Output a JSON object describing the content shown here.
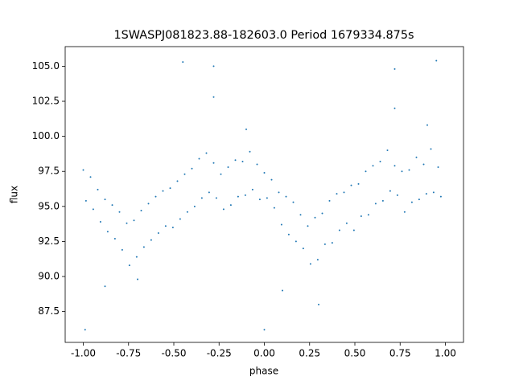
{
  "chart_data": {
    "type": "scatter",
    "title": "1SWASPJ081823.88-182603.0 Period 1679334.875s",
    "xlabel": "phase",
    "ylabel": "flux",
    "color": "#1f77b4",
    "xlim": [
      -1.1,
      1.1
    ],
    "ylim": [
      85.3,
      106.4
    ],
    "xticks": [
      {
        "value": -1,
        "label": "-1.00"
      },
      {
        "value": -0.75,
        "label": "-0.75"
      },
      {
        "value": -0.5,
        "label": "-0.50"
      },
      {
        "value": -0.25,
        "label": "-0.25"
      },
      {
        "value": 0,
        "label": "0.00"
      },
      {
        "value": 0.25,
        "label": "0.25"
      },
      {
        "value": 0.5,
        "label": "0.50"
      },
      {
        "value": 0.75,
        "label": "0.75"
      },
      {
        "value": 1,
        "label": "1.00"
      }
    ],
    "yticks": [
      {
        "value": 87.5,
        "label": "87.5"
      },
      {
        "value": 90,
        "label": "90.0"
      },
      {
        "value": 92.5,
        "label": "92.5"
      },
      {
        "value": 95,
        "label": "95.0"
      },
      {
        "value": 97.5,
        "label": "97.5"
      },
      {
        "value": 100,
        "label": "100.0"
      },
      {
        "value": 102.5,
        "label": "102.5"
      },
      {
        "value": 105,
        "label": "105.0"
      }
    ],
    "x": [
      -1.0,
      -0.985,
      -0.96,
      -0.945,
      -0.92,
      -0.905,
      -0.88,
      -0.865,
      -0.84,
      -0.825,
      -0.8,
      -0.785,
      -0.76,
      -0.745,
      -0.72,
      -0.705,
      -0.68,
      -0.665,
      -0.64,
      -0.625,
      -0.6,
      -0.585,
      -0.56,
      -0.545,
      -0.52,
      -0.505,
      -0.48,
      -0.465,
      -0.44,
      -0.425,
      -0.4,
      -0.385,
      -0.36,
      -0.345,
      -0.32,
      -0.305,
      -0.28,
      -0.265,
      -0.24,
      -0.225,
      -0.2,
      -0.185,
      -0.16,
      -0.145,
      -0.12,
      -0.105,
      -0.08,
      -0.065,
      -0.04,
      -0.025,
      0.0,
      0.015,
      0.04,
      0.055,
      0.08,
      0.095,
      0.12,
      0.135,
      0.16,
      0.175,
      0.2,
      0.215,
      0.24,
      0.255,
      0.28,
      0.295,
      0.32,
      0.335,
      0.36,
      0.375,
      0.4,
      0.415,
      0.44,
      0.455,
      0.48,
      0.495,
      0.52,
      0.535,
      0.56,
      0.575,
      0.6,
      0.615,
      0.64,
      0.655,
      0.68,
      0.695,
      0.72,
      0.735,
      0.76,
      0.775,
      0.8,
      0.815,
      0.84,
      0.855,
      0.88,
      0.895,
      0.92,
      0.935,
      0.96,
      0.975,
      -0.28,
      0.72,
      -0.88,
      0.1,
      -0.45,
      0.95,
      -0.99,
      0.0,
      0.3,
      -0.7,
      -0.1,
      0.9,
      0.72,
      -0.28
    ],
    "y": [
      97.6,
      95.4,
      97.1,
      94.8,
      96.2,
      93.9,
      95.5,
      93.2,
      95.1,
      92.7,
      94.6,
      91.9,
      93.8,
      90.8,
      94.0,
      91.4,
      94.7,
      92.1,
      95.2,
      92.6,
      95.7,
      93.1,
      96.1,
      93.6,
      96.3,
      93.5,
      96.8,
      94.1,
      97.3,
      94.6,
      97.7,
      95.0,
      98.4,
      95.6,
      98.8,
      96.0,
      98.1,
      95.6,
      97.3,
      94.8,
      97.8,
      95.1,
      98.3,
      95.7,
      98.2,
      95.8,
      98.9,
      96.2,
      98.0,
      95.5,
      97.4,
      95.6,
      96.9,
      94.9,
      96.0,
      93.7,
      95.7,
      93.0,
      95.3,
      92.5,
      94.4,
      92.0,
      93.6,
      90.9,
      94.2,
      91.2,
      94.5,
      92.3,
      95.4,
      92.4,
      95.9,
      93.3,
      96.0,
      93.8,
      96.5,
      93.3,
      96.6,
      94.3,
      97.5,
      94.4,
      97.9,
      95.2,
      98.2,
      95.4,
      99.0,
      96.1,
      97.9,
      95.8,
      97.5,
      94.6,
      97.6,
      95.3,
      98.5,
      95.5,
      98.0,
      95.9,
      99.1,
      96.0,
      97.8,
      95.7,
      105.0,
      104.8,
      89.3,
      89.0,
      105.3,
      105.4,
      86.2,
      86.2,
      88.0,
      89.8,
      100.5,
      100.8,
      102.0,
      102.8
    ]
  }
}
